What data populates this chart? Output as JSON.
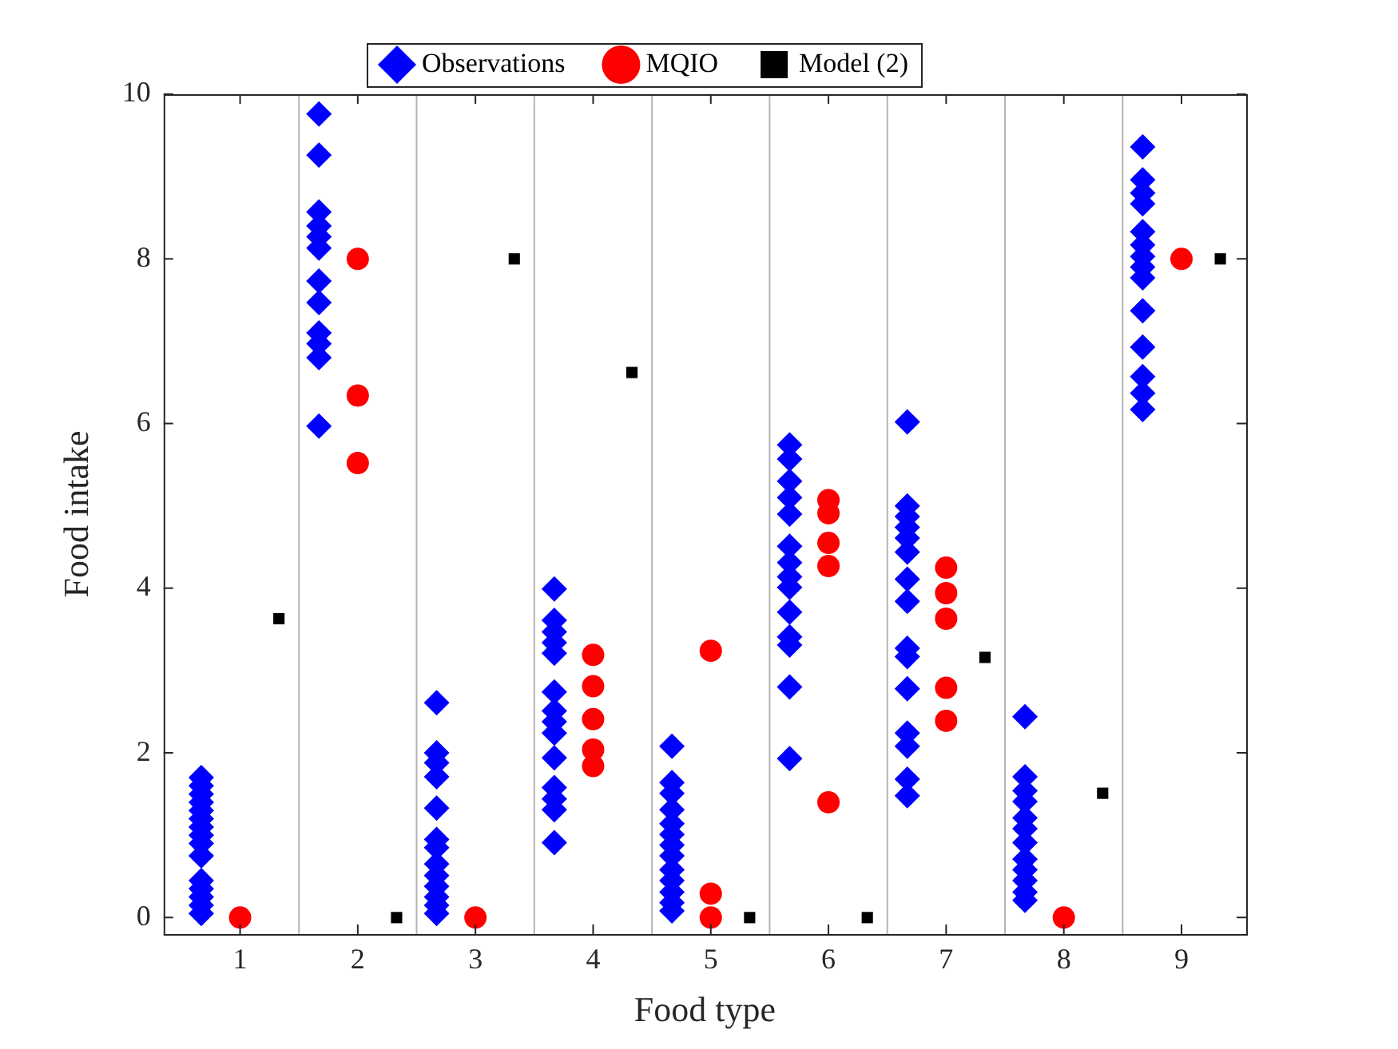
{
  "chart_data": {
    "type": "scatter",
    "xlabel": "Food type",
    "ylabel": "Food intake",
    "xlim": [
      0.35,
      9.55
    ],
    "ylim": [
      -0.2,
      10
    ],
    "xticks": [
      1,
      2,
      3,
      4,
      5,
      6,
      7,
      8,
      9
    ],
    "yticks": [
      0,
      2,
      4,
      6,
      8,
      10
    ],
    "grid": false,
    "legend": "top",
    "ref_lines": [
      {
        "axis": "x",
        "value": 1.5,
        "color": "#b4b4b4"
      },
      {
        "axis": "x",
        "value": 2.5,
        "color": "#b4b4b4"
      },
      {
        "axis": "x",
        "value": 3.5,
        "color": "#b4b4b4"
      },
      {
        "axis": "x",
        "value": 4.5,
        "color": "#b4b4b4"
      },
      {
        "axis": "x",
        "value": 5.5,
        "color": "#b4b4b4"
      },
      {
        "axis": "x",
        "value": 6.5,
        "color": "#b4b4b4"
      },
      {
        "axis": "x",
        "value": 7.5,
        "color": "#b4b4b4"
      },
      {
        "axis": "x",
        "value": 8.5,
        "color": "#b4b4b4"
      }
    ],
    "series": [
      {
        "name": "Observations",
        "color": "#0000ff",
        "marker": "diamond",
        "x": [
          0.67,
          0.67,
          0.67,
          0.67,
          0.67,
          0.67,
          0.67,
          0.67,
          0.67,
          0.67,
          0.67,
          0.67,
          0.67,
          0.67,
          0.67,
          1.67,
          1.67,
          1.67,
          1.67,
          1.67,
          1.67,
          1.67,
          1.67,
          1.67,
          1.67,
          1.67,
          1.67,
          2.67,
          2.67,
          2.67,
          2.67,
          2.67,
          2.67,
          2.67,
          2.67,
          2.67,
          2.67,
          2.67,
          2.67,
          2.67,
          3.67,
          3.67,
          3.67,
          3.67,
          3.67,
          3.67,
          3.67,
          3.67,
          3.67,
          3.67,
          3.67,
          3.67,
          3.67,
          3.67,
          4.67,
          4.67,
          4.67,
          4.67,
          4.67,
          4.67,
          4.67,
          4.67,
          4.67,
          4.67,
          4.67,
          4.67,
          4.67,
          5.67,
          5.67,
          5.67,
          5.67,
          5.67,
          5.67,
          5.67,
          5.67,
          5.67,
          5.67,
          5.67,
          5.67,
          5.67,
          5.67,
          6.67,
          6.67,
          6.67,
          6.67,
          6.67,
          6.67,
          6.67,
          6.67,
          6.67,
          6.67,
          6.67,
          6.67,
          6.67,
          6.67,
          6.67,
          7.67,
          7.67,
          7.67,
          7.67,
          7.67,
          7.67,
          7.67,
          7.67,
          7.67,
          7.67,
          7.67,
          7.67,
          8.67,
          8.67,
          8.67,
          8.67,
          8.67,
          8.67,
          8.67,
          8.67,
          8.67,
          8.67,
          8.67,
          8.67,
          8.67,
          8.67
        ],
        "values": [
          1.7,
          1.6,
          1.5,
          1.4,
          1.3,
          1.2,
          1.1,
          1.0,
          0.9,
          0.75,
          0.45,
          0.35,
          0.25,
          0.15,
          0.05,
          9.76,
          9.26,
          8.57,
          8.4,
          8.27,
          8.13,
          7.73,
          7.47,
          7.1,
          6.97,
          6.8,
          5.97,
          2.61,
          2.0,
          1.88,
          1.71,
          1.33,
          0.95,
          0.85,
          0.65,
          0.51,
          0.38,
          0.25,
          0.15,
          0.05,
          3.99,
          3.61,
          3.47,
          3.34,
          3.21,
          2.74,
          2.51,
          2.38,
          2.24,
          1.94,
          1.58,
          1.44,
          1.31,
          0.91,
          2.08,
          1.64,
          1.51,
          1.31,
          1.14,
          1.01,
          0.88,
          0.75,
          0.58,
          0.45,
          0.31,
          0.18,
          0.08,
          5.74,
          5.57,
          5.3,
          5.1,
          4.9,
          4.51,
          4.31,
          4.14,
          4.01,
          3.71,
          3.41,
          3.31,
          2.8,
          1.93,
          6.02,
          5.0,
          4.87,
          4.74,
          4.61,
          4.44,
          4.11,
          3.84,
          3.27,
          3.17,
          2.78,
          2.24,
          2.08,
          1.68,
          1.48,
          2.44,
          1.71,
          1.54,
          1.41,
          1.21,
          1.08,
          0.91,
          0.71,
          0.58,
          0.45,
          0.31,
          0.21,
          9.36,
          8.96,
          8.8,
          8.67,
          8.33,
          8.17,
          8.03,
          7.9,
          7.77,
          7.37,
          6.93,
          6.57,
          6.37,
          6.17
        ]
      },
      {
        "name": "MQIO",
        "color": "#ff0000",
        "marker": "circle",
        "x": [
          1,
          2,
          2,
          2,
          3,
          4,
          4,
          4,
          4,
          4,
          5,
          5,
          5,
          6,
          6,
          6,
          6,
          6,
          7,
          7,
          7,
          7,
          7,
          8,
          9
        ],
        "values": [
          0,
          8.0,
          6.34,
          5.52,
          0,
          3.19,
          2.81,
          2.41,
          2.04,
          1.84,
          3.24,
          0.29,
          0,
          5.07,
          4.91,
          4.55,
          4.27,
          1.4,
          4.25,
          3.94,
          3.63,
          2.79,
          2.39,
          0,
          8.0
        ]
      },
      {
        "name": "Model (2)",
        "color": "#000000",
        "marker": "square",
        "x": [
          1.33,
          2.33,
          3.33,
          4.33,
          5.33,
          6.33,
          7.33,
          8.33,
          9.33
        ],
        "values": [
          3.63,
          0,
          8.0,
          6.62,
          0,
          0,
          3.16,
          1.51,
          8.0
        ]
      }
    ]
  }
}
